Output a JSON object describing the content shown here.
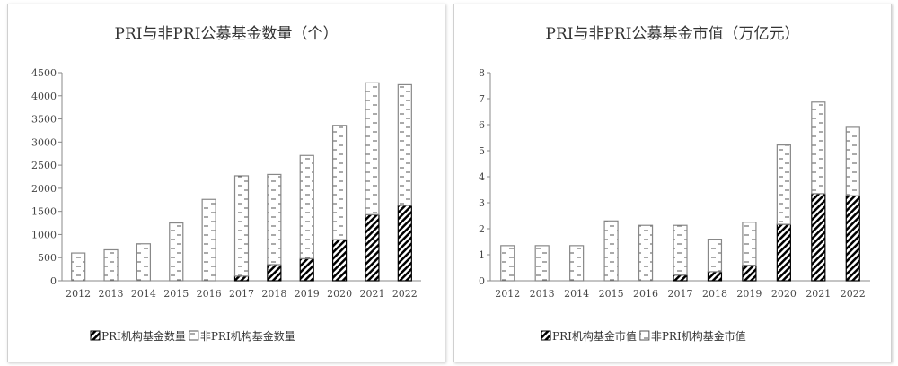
{
  "chart_data": [
    {
      "type": "bar",
      "stacked": true,
      "title": "PRI与非PRI公募基金数量（个）",
      "categories": [
        "2012",
        "2013",
        "2014",
        "2015",
        "2016",
        "2017",
        "2018",
        "2019",
        "2020",
        "2021",
        "2022"
      ],
      "ylim": [
        0,
        4500
      ],
      "yticks": [
        0,
        500,
        1000,
        1500,
        2000,
        2500,
        3000,
        3500,
        4000,
        4500
      ],
      "series": [
        {
          "name": "PRI机构基金数量",
          "pattern": "diagonal-hatch",
          "values": [
            0,
            0,
            0,
            0,
            0,
            100,
            350,
            480,
            890,
            1430,
            1630
          ]
        },
        {
          "name": "非PRI机构基金数量",
          "pattern": "dashes",
          "values": [
            600,
            670,
            800,
            1250,
            1760,
            2170,
            1950,
            2230,
            2470,
            2850,
            2610
          ]
        }
      ],
      "legend": "bottom",
      "grid": false
    },
    {
      "type": "bar",
      "stacked": true,
      "title": "PRI与非PRI公募基金市值（万亿元）",
      "categories": [
        "2012",
        "2013",
        "2014",
        "2015",
        "2016",
        "2017",
        "2018",
        "2019",
        "2020",
        "2021",
        "2022"
      ],
      "ylim": [
        0,
        8
      ],
      "yticks": [
        0,
        1,
        2,
        3,
        4,
        5,
        6,
        7,
        8
      ],
      "series": [
        {
          "name": "PRI机构基金市值",
          "pattern": "diagonal-hatch",
          "values": [
            0,
            0,
            0,
            0,
            0,
            0.22,
            0.35,
            0.6,
            2.17,
            3.35,
            3.27
          ]
        },
        {
          "name": "非PRI机构基金市值",
          "pattern": "dashes",
          "values": [
            1.35,
            1.35,
            1.35,
            2.3,
            2.13,
            1.91,
            1.25,
            1.65,
            3.05,
            3.52,
            2.63
          ]
        }
      ],
      "legend": "bottom",
      "grid": false
    }
  ]
}
